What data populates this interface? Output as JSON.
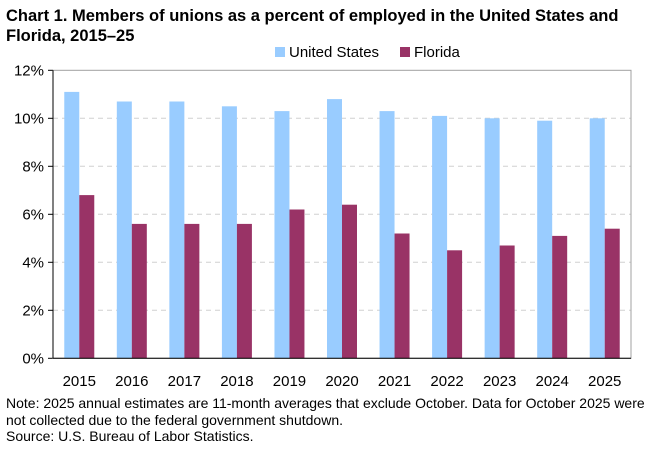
{
  "chart_data": {
    "type": "bar",
    "title": "Chart 1. Members of unions as a percent of employed  in the United States and Florida, 2015–25",
    "categories": [
      "2015",
      "2016",
      "2017",
      "2018",
      "2019",
      "2020",
      "2021",
      "2022",
      "2023",
      "2024",
      "2025"
    ],
    "series": [
      {
        "name": "United States",
        "color": "#99CCFF",
        "values": [
          11.1,
          10.7,
          10.7,
          10.5,
          10.3,
          10.8,
          10.3,
          10.1,
          10.0,
          9.9,
          10.0
        ]
      },
      {
        "name": "Florida",
        "color": "#993366",
        "values": [
          6.8,
          5.6,
          5.6,
          5.6,
          6.2,
          6.4,
          5.2,
          4.5,
          4.7,
          5.1,
          5.4
        ]
      }
    ],
    "ylim": [
      0,
      12
    ],
    "yticks": [
      "0%",
      "2%",
      "4%",
      "6%",
      "8%",
      "10%",
      "12%"
    ],
    "xlabel": "",
    "ylabel": "",
    "grid": "horizontal dashed",
    "legend": "top-center"
  },
  "note": {
    "line1": "Note: 2025 annual estimates are 11-month averages that exclude October. Data for October 2025 were not collected due to the federal government shutdown.",
    "source": "Source: U.S. Bureau of Labor Statistics."
  }
}
